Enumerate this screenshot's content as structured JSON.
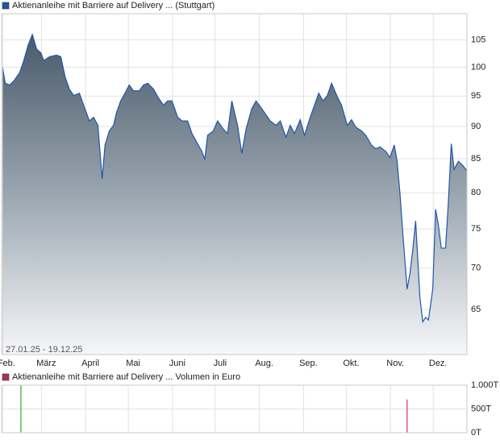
{
  "chart_data": [
    {
      "type": "area",
      "title": "Aktienanleihe mit Barriere auf Delivery ... (Stuttgart)",
      "range_label": "27.01.25 - 19.12.25",
      "x": [
        "2025-01-27",
        "2025-01-29",
        "2025-02-01",
        "2025-02-04",
        "2025-02-08",
        "2025-02-11",
        "2025-02-14",
        "2025-02-17",
        "2025-02-20",
        "2025-02-23",
        "2025-02-25",
        "2025-03-01",
        "2025-03-06",
        "2025-03-09",
        "2025-03-12",
        "2025-03-15",
        "2025-03-18",
        "2025-03-22",
        "2025-03-25",
        "2025-03-29",
        "2025-04-01",
        "2025-04-04",
        "2025-04-07",
        "2025-04-09",
        "2025-04-12",
        "2025-04-15",
        "2025-04-17",
        "2025-04-20",
        "2025-04-23",
        "2025-04-26",
        "2025-04-29",
        "2025-05-03",
        "2025-05-06",
        "2025-05-09",
        "2025-05-13",
        "2025-05-16",
        "2025-05-20",
        "2025-05-23",
        "2025-05-26",
        "2025-05-30",
        "2025-06-02",
        "2025-06-06",
        "2025-06-09",
        "2025-06-12",
        "2025-06-16",
        "2025-06-18",
        "2025-06-20",
        "2025-06-24",
        "2025-06-27",
        "2025-07-01",
        "2025-07-04",
        "2025-07-07",
        "2025-07-11",
        "2025-07-14",
        "2025-07-17",
        "2025-07-21",
        "2025-07-24",
        "2025-07-28",
        "2025-07-31",
        "2025-08-03",
        "2025-08-07",
        "2025-08-10",
        "2025-08-14",
        "2025-08-17",
        "2025-08-20",
        "2025-08-24",
        "2025-08-27",
        "2025-08-31",
        "2025-09-03",
        "2025-09-06",
        "2025-09-09",
        "2025-09-12",
        "2025-09-15",
        "2025-09-19",
        "2025-09-22",
        "2025-09-26",
        "2025-09-29",
        "2025-10-02",
        "2025-10-06",
        "2025-10-09",
        "2025-10-13",
        "2025-10-16",
        "2025-10-19",
        "2025-10-23",
        "2025-10-26",
        "2025-10-29",
        "2025-10-31",
        "2025-11-02",
        "2025-11-04",
        "2025-11-07",
        "2025-11-09",
        "2025-11-11",
        "2025-11-13",
        "2025-11-16",
        "2025-11-18",
        "2025-11-20",
        "2025-11-22",
        "2025-11-25",
        "2025-11-27",
        "2025-11-29",
        "2025-12-01",
        "2025-12-04",
        "2025-12-06",
        "2025-12-08",
        "2025-12-10",
        "2025-12-13",
        "2025-12-16",
        "2025-12-19"
      ],
      "values": [
        100.1,
        97.2,
        96.9,
        97.6,
        99,
        101.2,
        104,
        106,
        103.3,
        102.6,
        101.2,
        101.9,
        102.2,
        101.9,
        98.3,
        96.2,
        95.1,
        95.5,
        93.5,
        90.9,
        91.5,
        90.2,
        82,
        87.1,
        89.3,
        90.2,
        92.2,
        94.2,
        95.5,
        96.9,
        95.9,
        95.9,
        96.9,
        97.2,
        96.2,
        94.9,
        93.5,
        94.2,
        94.2,
        91.5,
        90.9,
        90.9,
        88.9,
        87.7,
        86.1,
        84.9,
        88.6,
        89.3,
        90.9,
        89.6,
        88.9,
        94.2,
        90.2,
        85.8,
        89.6,
        92.9,
        94.2,
        92.9,
        91.9,
        90.9,
        90.2,
        90.9,
        88.3,
        90.2,
        88.9,
        91.1,
        88.6,
        91.5,
        93.5,
        95.5,
        94.2,
        95.1,
        97.2,
        94.9,
        93.5,
        90.2,
        91.1,
        89.9,
        89.3,
        88.6,
        87.1,
        86.5,
        86.8,
        86.1,
        85.2,
        87.1,
        84.6,
        79.9,
        74.4,
        67.4,
        69.3,
        72.3,
        76.1,
        66.4,
        63.6,
        64.1,
        63.8,
        67.4,
        77.7,
        75.5,
        72.5,
        72.5,
        78.8,
        87.3,
        83.4,
        84.6,
        84,
        83.2
      ],
      "color": "#2255aa",
      "log_scale": true,
      "ylim": [
        60,
        110
      ],
      "yticks": [
        65,
        70,
        75,
        80,
        85,
        90,
        95,
        100,
        105
      ],
      "xlim": [
        "2025-01-27",
        "2025-12-19"
      ],
      "xticks": [
        {
          "value": "2025-02-01",
          "label": "Feb."
        },
        {
          "value": "2025-03-01",
          "label": "März"
        },
        {
          "value": "2025-04-01",
          "label": "April"
        },
        {
          "value": "2025-05-01",
          "label": "Mai"
        },
        {
          "value": "2025-06-01",
          "label": "Juni"
        },
        {
          "value": "2025-07-01",
          "label": "Juli"
        },
        {
          "value": "2025-08-01",
          "label": "Aug."
        },
        {
          "value": "2025-09-01",
          "label": "Sep."
        },
        {
          "value": "2025-10-01",
          "label": "Okt."
        },
        {
          "value": "2025-11-01",
          "label": "Nov."
        },
        {
          "value": "2025-12-01",
          "label": "Dez."
        }
      ],
      "grid": true
    },
    {
      "type": "bar",
      "title": "Aktienanleihe mit Barriere auf Delivery ... Volumen in Euro",
      "legend_color": "#b03050",
      "x": [
        "2025-02-09",
        "2025-11-07"
      ],
      "values": [
        1000000,
        700000
      ],
      "colors": [
        "#33aa33",
        "#cc3366"
      ],
      "ylim": [
        0,
        1000000
      ],
      "yticks": [
        {
          "value": 0,
          "label": "0T"
        },
        {
          "value": 500000,
          "label": "500T"
        },
        {
          "value": 1000000,
          "label": "1.000T"
        }
      ],
      "xlim": [
        "2025-01-27",
        "2025-12-19"
      ],
      "grid": true
    }
  ]
}
